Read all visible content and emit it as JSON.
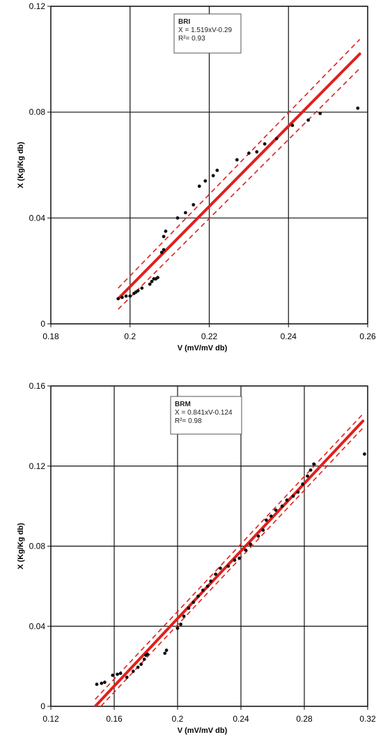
{
  "chart_data": [
    {
      "type": "scatter",
      "xlabel": "V (mV/mV db)",
      "ylabel": "X (Kg/Kg db)",
      "xlim": [
        0.18,
        0.26
      ],
      "ylim": [
        0,
        0.12
      ],
      "x_ticks": [
        "0.18",
        "0.2",
        "0.22",
        "0.24",
        "0.26"
      ],
      "y_ticks": [
        "0",
        "0.04",
        "0.08",
        "0.12"
      ],
      "x_tick_values": [
        0.18,
        0.2,
        0.22,
        0.24,
        0.26
      ],
      "y_tick_values": [
        0,
        0.04,
        0.08,
        0.12
      ],
      "grid": true,
      "legend": {
        "title": "BRI",
        "equation": "X = 1.519xV-0.29",
        "r2": "R²= 0.93",
        "position": "top-center"
      },
      "points": [
        [
          0.197,
          0.0095
        ],
        [
          0.198,
          0.01
        ],
        [
          0.199,
          0.0105
        ],
        [
          0.2,
          0.0105
        ],
        [
          0.201,
          0.0115
        ],
        [
          0.2015,
          0.012
        ],
        [
          0.202,
          0.0125
        ],
        [
          0.203,
          0.0135
        ],
        [
          0.205,
          0.015
        ],
        [
          0.2055,
          0.016
        ],
        [
          0.206,
          0.017
        ],
        [
          0.2065,
          0.017
        ],
        [
          0.207,
          0.0175
        ],
        [
          0.208,
          0.027
        ],
        [
          0.2085,
          0.028
        ],
        [
          0.2085,
          0.033
        ],
        [
          0.209,
          0.035
        ],
        [
          0.212,
          0.04
        ],
        [
          0.214,
          0.042
        ],
        [
          0.216,
          0.045
        ],
        [
          0.2175,
          0.052
        ],
        [
          0.219,
          0.054
        ],
        [
          0.221,
          0.056
        ],
        [
          0.222,
          0.058
        ],
        [
          0.227,
          0.062
        ],
        [
          0.23,
          0.0645
        ],
        [
          0.232,
          0.065
        ],
        [
          0.234,
          0.068
        ],
        [
          0.237,
          0.07
        ],
        [
          0.241,
          0.075
        ],
        [
          0.245,
          0.077
        ],
        [
          0.248,
          0.0795
        ],
        [
          0.2575,
          0.0815
        ]
      ],
      "fit_line": {
        "x": [
          0.197,
          0.258
        ],
        "y": [
          0.0095,
          0.102
        ],
        "color": "#e0201b"
      },
      "confidence_bands": {
        "upper": {
          "x": [
            0.197,
            0.258
          ],
          "y": [
            0.0135,
            0.1075
          ]
        },
        "lower": {
          "x": [
            0.197,
            0.258
          ],
          "y": [
            0.0055,
            0.0965
          ]
        },
        "color": "#e0201b",
        "style": "dashed"
      }
    },
    {
      "type": "scatter",
      "xlabel": "V (mV/mV db)",
      "ylabel": "X (Kg/Kg db)",
      "xlim": [
        0.12,
        0.32
      ],
      "ylim": [
        0,
        0.16
      ],
      "x_ticks": [
        "0.12",
        "0.16",
        "0.2",
        "0.24",
        "0.28",
        "0.32"
      ],
      "y_ticks": [
        "0",
        "0.04",
        "0.08",
        "0.12",
        "0.16"
      ],
      "x_tick_values": [
        0.12,
        0.16,
        0.2,
        0.24,
        0.28,
        0.32
      ],
      "y_tick_values": [
        0,
        0.04,
        0.08,
        0.12,
        0.16
      ],
      "grid": true,
      "legend": {
        "title": "BRM",
        "equation": "X = 0.841xV-0.124",
        "r2": "R²= 0.98",
        "position": "top-center"
      },
      "points": [
        [
          0.149,
          0.011
        ],
        [
          0.152,
          0.0115
        ],
        [
          0.154,
          0.012
        ],
        [
          0.159,
          0.0155
        ],
        [
          0.162,
          0.016
        ],
        [
          0.164,
          0.0165
        ],
        [
          0.168,
          0.0145
        ],
        [
          0.172,
          0.0175
        ],
        [
          0.175,
          0.0195
        ],
        [
          0.177,
          0.021
        ],
        [
          0.179,
          0.0235
        ],
        [
          0.18,
          0.0255
        ],
        [
          0.181,
          0.026
        ],
        [
          0.192,
          0.0265
        ],
        [
          0.193,
          0.028
        ],
        [
          0.2,
          0.039
        ],
        [
          0.202,
          0.041
        ],
        [
          0.204,
          0.045
        ],
        [
          0.207,
          0.049
        ],
        [
          0.21,
          0.052
        ],
        [
          0.213,
          0.055
        ],
        [
          0.216,
          0.058
        ],
        [
          0.219,
          0.06
        ],
        [
          0.221,
          0.0625
        ],
        [
          0.224,
          0.066
        ],
        [
          0.227,
          0.069
        ],
        [
          0.232,
          0.07
        ],
        [
          0.236,
          0.073
        ],
        [
          0.239,
          0.074
        ],
        [
          0.243,
          0.078
        ],
        [
          0.246,
          0.081
        ],
        [
          0.251,
          0.085
        ],
        [
          0.254,
          0.088
        ],
        [
          0.256,
          0.093
        ],
        [
          0.259,
          0.095
        ],
        [
          0.262,
          0.098
        ],
        [
          0.266,
          0.1
        ],
        [
          0.269,
          0.103
        ],
        [
          0.273,
          0.105
        ],
        [
          0.276,
          0.107
        ],
        [
          0.279,
          0.111
        ],
        [
          0.282,
          0.115
        ],
        [
          0.284,
          0.118
        ],
        [
          0.286,
          0.121
        ],
        [
          0.318,
          0.126
        ]
      ],
      "fit_line": {
        "x": [
          0.148,
          0.317
        ],
        "y": [
          0.0,
          0.1425
        ],
        "color": "#e0201b"
      },
      "confidence_bands": {
        "upper": {
          "x": [
            0.148,
            0.317
          ],
          "y": [
            0.0035,
            0.146
          ]
        },
        "lower": {
          "x": [
            0.148,
            0.317
          ],
          "y": [
            -0.003,
            0.139
          ]
        },
        "color": "#e0201b",
        "style": "dashed"
      }
    }
  ]
}
